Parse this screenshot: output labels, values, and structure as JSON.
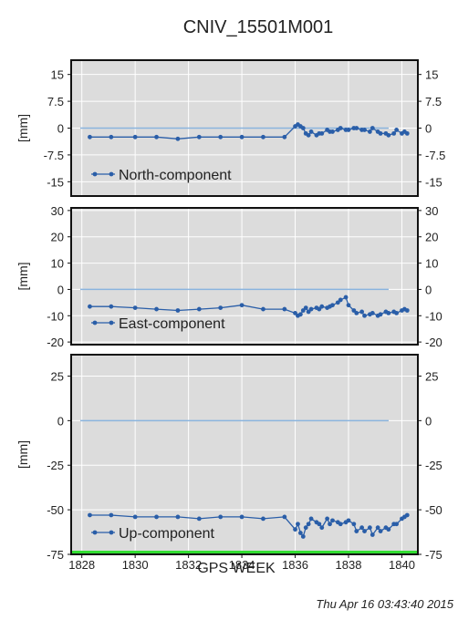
{
  "chart_data": {
    "type": "line",
    "title": "CNIV_15501M001",
    "xlabel": "GPS WEEK",
    "timestamp": "Thu Apr 16 03:43:40 2015",
    "grid": true,
    "x_ticks": [
      "1828",
      "1830",
      "1832",
      "1834",
      "1836",
      "1838",
      "1840"
    ],
    "xlim": [
      1827.6,
      1840.6
    ],
    "colors": {
      "series": "#2a5ea8",
      "zero_line": "#8ab4de",
      "panel_bg": "#dcdcdc",
      "baseline": "#33dd33"
    },
    "panels": [
      {
        "ylabel": "[mm]",
        "ylim": [
          -19,
          19
        ],
        "y_ticks": [
          15,
          7.5,
          0,
          -7.5,
          -15
        ],
        "y_tick_labels": [
          "15",
          "7.5",
          "0",
          "-7.5",
          "-15"
        ],
        "y_tick_labels_right": [
          "15",
          "7.5",
          "0",
          "-7.5",
          "-15"
        ],
        "legend": "North-component",
        "legend_position": "bottom-left",
        "series": {
          "name": "North-component",
          "x": [
            1828.3,
            1829.1,
            1830.0,
            1830.8,
            1831.6,
            1832.4,
            1833.2,
            1834.0,
            1834.8,
            1835.6,
            1836.0,
            1836.1,
            1836.2,
            1836.3,
            1836.4,
            1836.5,
            1836.6,
            1836.8,
            1836.9,
            1837.0,
            1837.2,
            1837.3,
            1837.4,
            1837.6,
            1837.7,
            1837.9,
            1838.0,
            1838.2,
            1838.3,
            1838.5,
            1838.6,
            1838.8,
            1838.9,
            1839.1,
            1839.2,
            1839.4,
            1839.5,
            1839.7,
            1839.8,
            1840.0,
            1840.1,
            1840.2
          ],
          "y": [
            -2.5,
            -2.5,
            -2.5,
            -2.5,
            -3,
            -2.5,
            -2.5,
            -2.5,
            -2.5,
            -2.5,
            0.5,
            1,
            0.5,
            0,
            -1.5,
            -2,
            -1,
            -2,
            -1.5,
            -1.5,
            -0.5,
            -1,
            -1,
            -0.5,
            0,
            -0.5,
            -0.5,
            0,
            0,
            -0.5,
            -0.5,
            -1,
            0,
            -1,
            -1.5,
            -1.5,
            -2,
            -1.5,
            -0.5,
            -1.5,
            -1,
            -1.5
          ]
        }
      },
      {
        "ylabel": "[mm]",
        "ylim": [
          -21,
          31
        ],
        "y_ticks": [
          30,
          20,
          10,
          0,
          -10,
          -20
        ],
        "y_tick_labels": [
          "30",
          "20",
          "10",
          "0",
          "-10",
          "-20"
        ],
        "y_tick_labels_right": [
          "30",
          "20",
          "10",
          "0",
          "-10",
          "-20"
        ],
        "legend": "East-component",
        "legend_position": "bottom-left",
        "series": {
          "name": "East-component",
          "x": [
            1828.3,
            1829.1,
            1830.0,
            1830.8,
            1831.6,
            1832.4,
            1833.2,
            1834.0,
            1834.8,
            1835.6,
            1836.0,
            1836.1,
            1836.2,
            1836.3,
            1836.4,
            1836.5,
            1836.6,
            1836.8,
            1836.9,
            1837.0,
            1837.2,
            1837.3,
            1837.4,
            1837.6,
            1837.7,
            1837.9,
            1838.0,
            1838.2,
            1838.3,
            1838.5,
            1838.6,
            1838.8,
            1838.9,
            1839.1,
            1839.2,
            1839.4,
            1839.5,
            1839.7,
            1839.8,
            1840.0,
            1840.1,
            1840.2
          ],
          "y": [
            -6.5,
            -6.5,
            -7,
            -7.5,
            -8,
            -7.5,
            -7,
            -6,
            -7.5,
            -7.5,
            -9,
            -10,
            -9.5,
            -8,
            -7,
            -8.5,
            -7.5,
            -7,
            -7.5,
            -6.5,
            -7,
            -6.5,
            -6,
            -5,
            -4,
            -3,
            -6,
            -8,
            -9,
            -8.5,
            -10,
            -9.5,
            -9,
            -10,
            -9.5,
            -8.5,
            -9,
            -8.5,
            -9,
            -8,
            -7.5,
            -8
          ]
        }
      },
      {
        "ylabel": "[mm]",
        "ylim": [
          -75,
          37
        ],
        "y_ticks": [
          25,
          0,
          -25,
          -50,
          -75
        ],
        "y_tick_labels": [
          "25",
          "0",
          "-25",
          "-50",
          "-75"
        ],
        "y_tick_labels_right": [
          "25",
          "0",
          "-25",
          "-50",
          "-75"
        ],
        "legend": "Up-component",
        "legend_position": "bottom-left",
        "series": {
          "name": "Up-component",
          "x": [
            1828.3,
            1829.1,
            1830.0,
            1830.8,
            1831.6,
            1832.4,
            1833.2,
            1834.0,
            1834.8,
            1835.6,
            1836.0,
            1836.1,
            1836.2,
            1836.3,
            1836.4,
            1836.5,
            1836.6,
            1836.8,
            1836.9,
            1837.0,
            1837.2,
            1837.3,
            1837.4,
            1837.6,
            1837.7,
            1837.9,
            1838.0,
            1838.2,
            1838.3,
            1838.5,
            1838.6,
            1838.8,
            1838.9,
            1839.1,
            1839.2,
            1839.4,
            1839.5,
            1839.7,
            1839.8,
            1840.0,
            1840.1,
            1840.2
          ],
          "y": [
            -53,
            -53,
            -54,
            -54,
            -54,
            -55,
            -54,
            -54,
            -55,
            -54,
            -61,
            -58,
            -63,
            -65,
            -60,
            -58,
            -55,
            -57,
            -58,
            -60,
            -55,
            -58,
            -56,
            -57,
            -58,
            -57,
            -56,
            -58,
            -62,
            -60,
            -62,
            -60,
            -64,
            -60,
            -62,
            -60,
            -61,
            -58,
            -58,
            -55,
            -54,
            -53
          ]
        }
      }
    ]
  }
}
